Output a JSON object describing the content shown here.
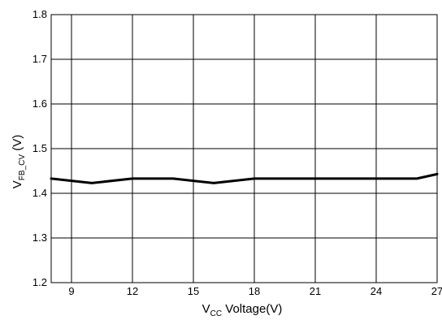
{
  "chart_data": {
    "type": "line",
    "title": "",
    "xlabel": {
      "main": "V",
      "sub": "CC",
      "rest": " Voltage(V)"
    },
    "ylabel": {
      "main": "V",
      "sub": "FB_CV",
      "rest": " (V)"
    },
    "xlim": [
      8,
      27
    ],
    "ylim": [
      1.2,
      1.8
    ],
    "x_ticks": [
      9,
      12,
      15,
      18,
      21,
      24,
      27
    ],
    "y_ticks": [
      1.2,
      1.3,
      1.4,
      1.5,
      1.6,
      1.7,
      1.8
    ],
    "x_tick_labels": [
      "9",
      "12",
      "15",
      "18",
      "21",
      "24",
      "27"
    ],
    "y_tick_labels": [
      "1.2",
      "1.3",
      "1.4",
      "1.5",
      "1.6",
      "1.7",
      "1.8"
    ],
    "grid": true,
    "series": [
      {
        "x": [
          8,
          10,
          12,
          14,
          16,
          18,
          20,
          22,
          24,
          26,
          27
        ],
        "y": [
          1.433,
          1.423,
          1.433,
          1.433,
          1.423,
          1.433,
          1.433,
          1.433,
          1.433,
          1.433,
          1.443
        ]
      }
    ],
    "colors": {
      "line": "#000000",
      "grid": "#000000",
      "frame": "#000000"
    }
  }
}
